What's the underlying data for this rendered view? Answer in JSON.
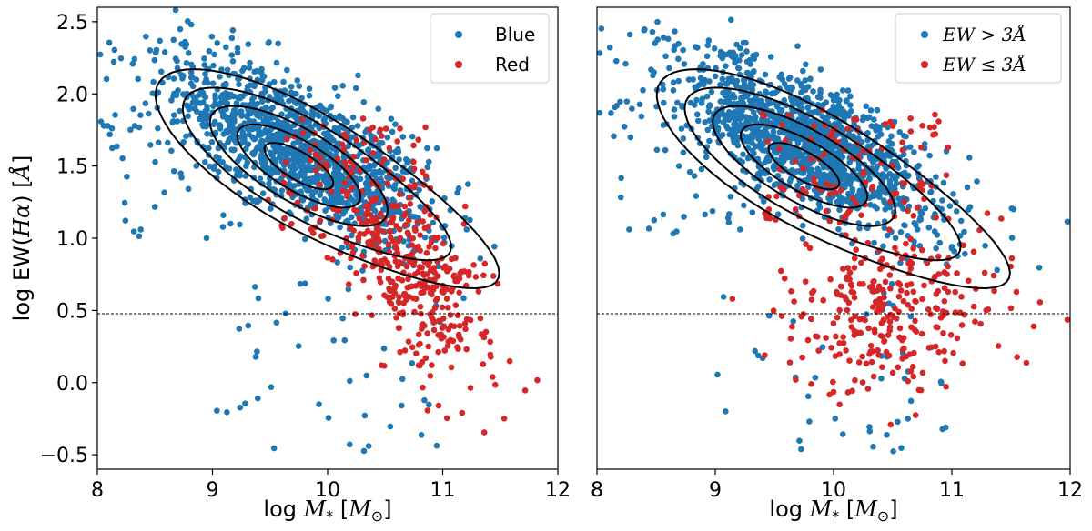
{
  "chart_data": [
    {
      "type": "scatter",
      "panel": "left",
      "xlabel": "log M* [M⊙]",
      "ylabel": "log EW(Hα) [Å]",
      "xlim": [
        8,
        12
      ],
      "ylim": [
        -0.6,
        2.6
      ],
      "xticks": [
        "8",
        "9",
        "10",
        "11",
        "12"
      ],
      "yticks": [
        "−0.5",
        "0.0",
        "0.5",
        "1.0",
        "1.5",
        "2.0",
        "2.5"
      ],
      "threshold_line_y": 0.477,
      "legend": {
        "placement": "top-right",
        "entries": [
          "Blue",
          "Red"
        ]
      },
      "series": [
        {
          "name": "Blue",
          "color": "#1f77b4",
          "center": [
            9.8,
            1.6
          ],
          "count": 1400
        },
        {
          "name": "Red",
          "color": "#d62728",
          "center": [
            10.7,
            0.8
          ],
          "count": 450
        }
      ],
      "contours": {
        "color": "#000000",
        "levels": 5,
        "peak": [
          9.75,
          1.6
        ]
      }
    },
    {
      "type": "scatter",
      "panel": "right",
      "xlabel": "log M* [M⊙]",
      "ylabel": "",
      "xlim": [
        8,
        12
      ],
      "ylim": [
        -0.6,
        2.6
      ],
      "xticks": [
        "8",
        "9",
        "10",
        "11",
        "12"
      ],
      "yticks": [],
      "threshold_line_y": 0.477,
      "legend": {
        "placement": "top-right",
        "entries": [
          "EW > 3Å",
          "EW ≤ 3Å"
        ]
      },
      "series": [
        {
          "name": "EW > 3Å",
          "color": "#1f77b4",
          "center": [
            9.8,
            1.65
          ],
          "count": 1450
        },
        {
          "name": "EW ≤ 3Å",
          "color": "#d62728",
          "center": [
            10.5,
            0.6
          ],
          "count": 400
        }
      ],
      "contours": {
        "color": "#000000",
        "levels": 5,
        "peak": [
          9.75,
          1.6
        ]
      }
    }
  ],
  "colors": {
    "blue": "#1f77b4",
    "red": "#d62728",
    "axis": "#000000"
  }
}
